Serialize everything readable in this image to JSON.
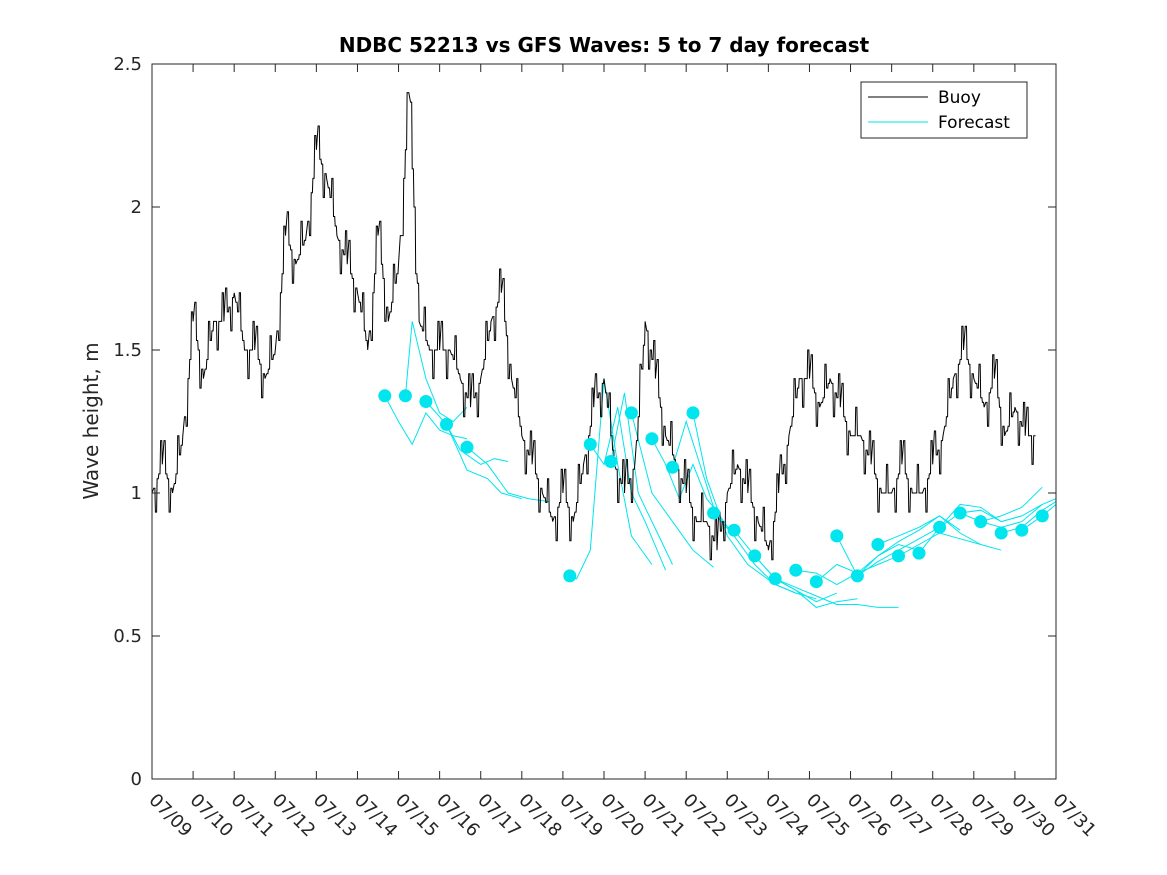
{
  "chart_data": {
    "type": "line",
    "title": "NDBC 52213 vs GFS Waves: 5 to 7 day forecast",
    "xlabel": "",
    "ylabel": "Wave height, m",
    "xlim": [
      "07/09",
      "07/31"
    ],
    "ylim": [
      0,
      2.5
    ],
    "x_ticks": [
      "07/09",
      "07/10",
      "07/11",
      "07/12",
      "07/13",
      "07/14",
      "07/15",
      "07/16",
      "07/17",
      "07/18",
      "07/19",
      "07/20",
      "07/21",
      "07/22",
      "07/23",
      "07/24",
      "07/25",
      "07/26",
      "07/27",
      "07/28",
      "07/29",
      "07/30",
      "07/31"
    ],
    "y_ticks": [
      "0",
      "0.5",
      "1",
      "1.5",
      "2",
      "2.5"
    ],
    "grid": false,
    "legend_position": "top-right",
    "colors": {
      "buoy": "#000000",
      "forecast": "#00e5ee"
    },
    "series": [
      {
        "name": "Buoy",
        "x": [
          "07/09 00:00",
          "07/09 06:00",
          "07/09 12:00",
          "07/09 18:00",
          "07/10 00:00",
          "07/10 06:00",
          "07/10 12:00",
          "07/10 18:00",
          "07/11 00:00",
          "07/11 06:00",
          "07/11 12:00",
          "07/11 18:00",
          "07/12 00:00",
          "07/12 06:00",
          "07/12 12:00",
          "07/12 18:00",
          "07/13 00:00",
          "07/13 06:00",
          "07/13 12:00",
          "07/13 18:00",
          "07/14 00:00",
          "07/14 06:00",
          "07/14 12:00",
          "07/14 18:00",
          "07/15 00:00",
          "07/15 06:00",
          "07/15 12:00",
          "07/15 18:00",
          "07/16 00:00",
          "07/16 06:00",
          "07/16 12:00",
          "07/16 18:00",
          "07/17 00:00",
          "07/17 06:00",
          "07/17 12:00",
          "07/17 18:00",
          "07/18 00:00",
          "07/18 06:00",
          "07/18 12:00",
          "07/18 18:00",
          "07/19 00:00",
          "07/19 06:00",
          "07/19 12:00",
          "07/19 18:00",
          "07/20 00:00",
          "07/20 06:00",
          "07/20 12:00",
          "07/20 18:00",
          "07/21 00:00",
          "07/21 06:00",
          "07/21 12:00",
          "07/21 18:00",
          "07/22 00:00",
          "07/22 06:00",
          "07/22 12:00",
          "07/22 18:00",
          "07/23 00:00",
          "07/23 06:00",
          "07/23 12:00",
          "07/23 18:00",
          "07/24 00:00",
          "07/24 06:00",
          "07/24 12:00",
          "07/24 18:00",
          "07/25 00:00",
          "07/25 06:00",
          "07/25 12:00",
          "07/25 18:00",
          "07/26 00:00",
          "07/26 06:00",
          "07/26 12:00",
          "07/26 18:00",
          "07/27 00:00",
          "07/27 06:00",
          "07/27 12:00",
          "07/27 18:00",
          "07/28 00:00",
          "07/28 06:00",
          "07/28 12:00",
          "07/28 18:00",
          "07/29 00:00",
          "07/29 06:00",
          "07/29 12:00",
          "07/29 18:00",
          "07/30 00:00",
          "07/30 06:00",
          "07/30 12:00"
        ],
        "y": [
          1.0,
          1.1,
          1.0,
          1.2,
          1.6,
          1.4,
          1.6,
          1.6,
          1.7,
          1.5,
          1.5,
          1.4,
          1.5,
          1.9,
          1.8,
          1.9,
          2.2,
          2.1,
          1.9,
          1.8,
          1.7,
          1.5,
          1.9,
          1.6,
          1.8,
          2.4,
          1.6,
          1.5,
          1.5,
          1.5,
          1.4,
          1.3,
          1.4,
          1.6,
          1.7,
          1.4,
          1.2,
          1.1,
          1.0,
          0.9,
          1.0,
          0.9,
          1.1,
          1.3,
          1.4,
          1.1,
          1.0,
          1.1,
          1.6,
          1.4,
          1.2,
          1.1,
          1.0,
          0.9,
          0.9,
          0.8,
          1.0,
          1.1,
          1.0,
          0.9,
          0.8,
          1.0,
          1.2,
          1.4,
          1.4,
          1.3,
          1.4,
          1.3,
          1.2,
          1.2,
          1.1,
          1.0,
          1.0,
          1.1,
          1.0,
          1.0,
          1.1,
          1.2,
          1.4,
          1.5,
          1.4,
          1.3,
          1.4,
          1.2,
          1.3,
          1.2,
          1.2
        ]
      },
      {
        "name": "Forecast",
        "points": [
          {
            "x": "07/14 16:00",
            "y": 1.34
          },
          {
            "x": "07/15 04:00",
            "y": 1.34
          },
          {
            "x": "07/15 16:00",
            "y": 1.32
          },
          {
            "x": "07/16 04:00",
            "y": 1.24
          },
          {
            "x": "07/16 16:00",
            "y": 1.16
          },
          {
            "x": "07/19 04:00",
            "y": 0.71
          },
          {
            "x": "07/19 16:00",
            "y": 1.17
          },
          {
            "x": "07/20 04:00",
            "y": 1.11
          },
          {
            "x": "07/20 16:00",
            "y": 1.28
          },
          {
            "x": "07/21 04:00",
            "y": 1.19
          },
          {
            "x": "07/21 16:00",
            "y": 1.09
          },
          {
            "x": "07/22 04:00",
            "y": 1.28
          },
          {
            "x": "07/22 16:00",
            "y": 0.93
          },
          {
            "x": "07/23 04:00",
            "y": 0.87
          },
          {
            "x": "07/23 16:00",
            "y": 0.78
          },
          {
            "x": "07/24 04:00",
            "y": 0.7
          },
          {
            "x": "07/24 16:00",
            "y": 0.73
          },
          {
            "x": "07/25 04:00",
            "y": 0.69
          },
          {
            "x": "07/25 16:00",
            "y": 0.85
          },
          {
            "x": "07/26 04:00",
            "y": 0.71
          },
          {
            "x": "07/26 16:00",
            "y": 0.82
          },
          {
            "x": "07/27 04:00",
            "y": 0.78
          },
          {
            "x": "07/27 16:00",
            "y": 0.79
          },
          {
            "x": "07/28 04:00",
            "y": 0.88
          },
          {
            "x": "07/28 16:00",
            "y": 0.93
          },
          {
            "x": "07/29 04:00",
            "y": 0.9
          },
          {
            "x": "07/29 16:00",
            "y": 0.86
          },
          {
            "x": "07/30 04:00",
            "y": 0.87
          },
          {
            "x": "07/30 16:00",
            "y": 0.92
          }
        ],
        "lines": [
          [
            [
              "07/14 16:00",
              1.34
            ],
            [
              "07/15 00:00",
              1.25
            ],
            [
              "07/15 08:00",
              1.17
            ],
            [
              "07/15 16:00",
              1.28
            ],
            [
              "07/16 00:00",
              1.22
            ],
            [
              "07/16 08:00",
              1.2
            ],
            [
              "07/16 16:00",
              1.19
            ]
          ],
          [
            [
              "07/15 04:00",
              1.34
            ],
            [
              "07/15 08:00",
              1.6
            ],
            [
              "07/15 16:00",
              1.4
            ],
            [
              "07/16 00:00",
              1.28
            ],
            [
              "07/16 08:00",
              1.25
            ],
            [
              "07/16 16:00",
              1.3
            ]
          ],
          [
            [
              "07/15 16:00",
              1.32
            ],
            [
              "07/16 04:00",
              1.24
            ],
            [
              "07/16 12:00",
              1.15
            ],
            [
              "07/17 00:00",
              1.1
            ],
            [
              "07/17 08:00",
              1.12
            ],
            [
              "07/17 16:00",
              1.11
            ]
          ],
          [
            [
              "07/16 04:00",
              1.24
            ],
            [
              "07/16 16:00",
              1.08
            ],
            [
              "07/17 04:00",
              1.05
            ],
            [
              "07/17 12:00",
              1.0
            ],
            [
              "07/18 00:00",
              0.98
            ]
          ],
          [
            [
              "07/16 16:00",
              1.16
            ],
            [
              "07/17 04:00",
              1.1
            ],
            [
              "07/17 16:00",
              1.0
            ],
            [
              "07/18 04:00",
              0.98
            ],
            [
              "07/18 16:00",
              0.97
            ]
          ],
          [
            [
              "07/19 04:00",
              0.71
            ],
            [
              "07/19 08:00",
              0.7
            ],
            [
              "07/19 16:00",
              0.8
            ],
            [
              "07/20 00:00",
              1.4
            ],
            [
              "07/20 08:00",
              1.1
            ],
            [
              "07/20 16:00",
              0.85
            ],
            [
              "07/21 04:00",
              0.75
            ]
          ],
          [
            [
              "07/19 16:00",
              1.17
            ],
            [
              "07/20 00:00",
              1.1
            ],
            [
              "07/20 08:00",
              1.3
            ],
            [
              "07/20 16:00",
              1.0
            ],
            [
              "07/21 00:00",
              0.9
            ],
            [
              "07/21 12:00",
              0.73
            ]
          ],
          [
            [
              "07/20 04:00",
              1.11
            ],
            [
              "07/20 12:00",
              1.35
            ],
            [
              "07/20 20:00",
              1.0
            ],
            [
              "07/21 08:00",
              0.85
            ],
            [
              "07/21 16:00",
              0.75
            ]
          ],
          [
            [
              "07/20 16:00",
              1.28
            ],
            [
              "07/21 04:00",
              1.0
            ],
            [
              "07/21 16:00",
              0.9
            ],
            [
              "07/22 04:00",
              0.8
            ],
            [
              "07/22 16:00",
              0.74
            ]
          ],
          [
            [
              "07/21 04:00",
              1.19
            ],
            [
              "07/21 12:00",
              1.1
            ],
            [
              "07/21 20:00",
              0.98
            ],
            [
              "07/22 04:00",
              1.1
            ],
            [
              "07/22 12:00",
              0.98
            ],
            [
              "07/22 20:00",
              0.92
            ]
          ],
          [
            [
              "07/21 16:00",
              1.09
            ],
            [
              "07/22 00:00",
              1.25
            ],
            [
              "07/22 08:00",
              1.1
            ],
            [
              "07/22 16:00",
              0.95
            ],
            [
              "07/23 04:00",
              0.85
            ]
          ],
          [
            [
              "07/22 04:00",
              1.28
            ],
            [
              "07/22 12:00",
              1.05
            ],
            [
              "07/23 00:00",
              0.85
            ],
            [
              "07/23 12:00",
              0.75
            ],
            [
              "07/24 04:00",
              0.68
            ],
            [
              "07/24 16:00",
              0.65
            ]
          ],
          [
            [
              "07/22 16:00",
              0.93
            ],
            [
              "07/23 04:00",
              0.85
            ],
            [
              "07/23 16:00",
              0.75
            ],
            [
              "07/24 04:00",
              0.68
            ],
            [
              "07/24 16:00",
              0.65
            ],
            [
              "07/25 04:00",
              0.63
            ]
          ],
          [
            [
              "07/23 04:00",
              0.87
            ],
            [
              "07/23 16:00",
              0.78
            ],
            [
              "07/24 04:00",
              0.7
            ],
            [
              "07/24 16:00",
              0.66
            ],
            [
              "07/25 04:00",
              0.62
            ],
            [
              "07/25 16:00",
              0.65
            ]
          ],
          [
            [
              "07/23 16:00",
              0.78
            ],
            [
              "07/24 04:00",
              0.7
            ],
            [
              "07/24 16:00",
              0.66
            ],
            [
              "07/25 04:00",
              0.6
            ],
            [
              "07/25 16:00",
              0.62
            ],
            [
              "07/26 04:00",
              0.63
            ]
          ],
          [
            [
              "07/24 04:00",
              0.7
            ],
            [
              "07/24 16:00",
              0.67
            ],
            [
              "07/25 04:00",
              0.64
            ],
            [
              "07/25 16:00",
              0.61
            ],
            [
              "07/26 04:00",
              0.61
            ],
            [
              "07/26 16:00",
              0.6
            ],
            [
              "07/27 04:00",
              0.6
            ]
          ],
          [
            [
              "07/24 16:00",
              0.73
            ],
            [
              "07/25 04:00",
              0.72
            ],
            [
              "07/25 16:00",
              0.68
            ],
            [
              "07/26 04:00",
              0.72
            ],
            [
              "07/26 16:00",
              0.75
            ],
            [
              "07/27 04:00",
              0.78
            ]
          ],
          [
            [
              "07/25 04:00",
              0.69
            ],
            [
              "07/25 16:00",
              0.75
            ],
            [
              "07/26 04:00",
              0.72
            ],
            [
              "07/26 16:00",
              0.78
            ],
            [
              "07/27 04:00",
              0.82
            ],
            [
              "07/27 16:00",
              0.8
            ]
          ],
          [
            [
              "07/25 16:00",
              0.85
            ],
            [
              "07/26 04:00",
              0.71
            ],
            [
              "07/26 16:00",
              0.76
            ],
            [
              "07/27 04:00",
              0.8
            ],
            [
              "07/27 16:00",
              0.84
            ],
            [
              "07/28 04:00",
              0.88
            ]
          ],
          [
            [
              "07/26 04:00",
              0.71
            ],
            [
              "07/26 16:00",
              0.78
            ],
            [
              "07/27 04:00",
              0.83
            ],
            [
              "07/27 16:00",
              0.87
            ],
            [
              "07/28 04:00",
              0.92
            ],
            [
              "07/28 16:00",
              0.87
            ]
          ],
          [
            [
              "07/26 16:00",
              0.82
            ],
            [
              "07/27 04:00",
              0.85
            ],
            [
              "07/27 16:00",
              0.88
            ],
            [
              "07/28 04:00",
              0.92
            ],
            [
              "07/28 16:00",
              0.86
            ],
            [
              "07/29 04:00",
              0.82
            ]
          ],
          [
            [
              "07/27 04:00",
              0.78
            ],
            [
              "07/27 16:00",
              0.82
            ],
            [
              "07/28 04:00",
              0.86
            ],
            [
              "07/28 16:00",
              0.84
            ],
            [
              "07/29 04:00",
              0.82
            ],
            [
              "07/29 16:00",
              0.8
            ]
          ],
          [
            [
              "07/27 16:00",
              0.79
            ],
            [
              "07/28 04:00",
              0.88
            ],
            [
              "07/28 16:00",
              0.96
            ],
            [
              "07/29 04:00",
              0.95
            ],
            [
              "07/29 16:00",
              0.9
            ],
            [
              "07/30 04:00",
              0.92
            ]
          ],
          [
            [
              "07/28 04:00",
              0.88
            ],
            [
              "07/28 16:00",
              0.93
            ],
            [
              "07/29 04:00",
              0.94
            ],
            [
              "07/29 16:00",
              0.9
            ],
            [
              "07/30 04:00",
              0.92
            ],
            [
              "07/30 16:00",
              0.96
            ]
          ],
          [
            [
              "07/28 16:00",
              0.93
            ],
            [
              "07/29 04:00",
              0.9
            ],
            [
              "07/29 16:00",
              0.92
            ],
            [
              "07/30 04:00",
              0.95
            ],
            [
              "07/30 16:00",
              1.02
            ]
          ],
          [
            [
              "07/29 04:00",
              0.9
            ],
            [
              "07/29 16:00",
              0.88
            ],
            [
              "07/30 04:00",
              0.9
            ],
            [
              "07/30 16:00",
              0.96
            ],
            [
              "07/31 00:00",
              0.98
            ]
          ],
          [
            [
              "07/29 16:00",
              0.86
            ],
            [
              "07/30 04:00",
              0.88
            ],
            [
              "07/30 16:00",
              0.94
            ],
            [
              "07/31 00:00",
              0.97
            ]
          ],
          [
            [
              "07/30 04:00",
              0.87
            ],
            [
              "07/30 16:00",
              0.92
            ],
            [
              "07/31 00:00",
              0.96
            ]
          ]
        ]
      }
    ]
  }
}
